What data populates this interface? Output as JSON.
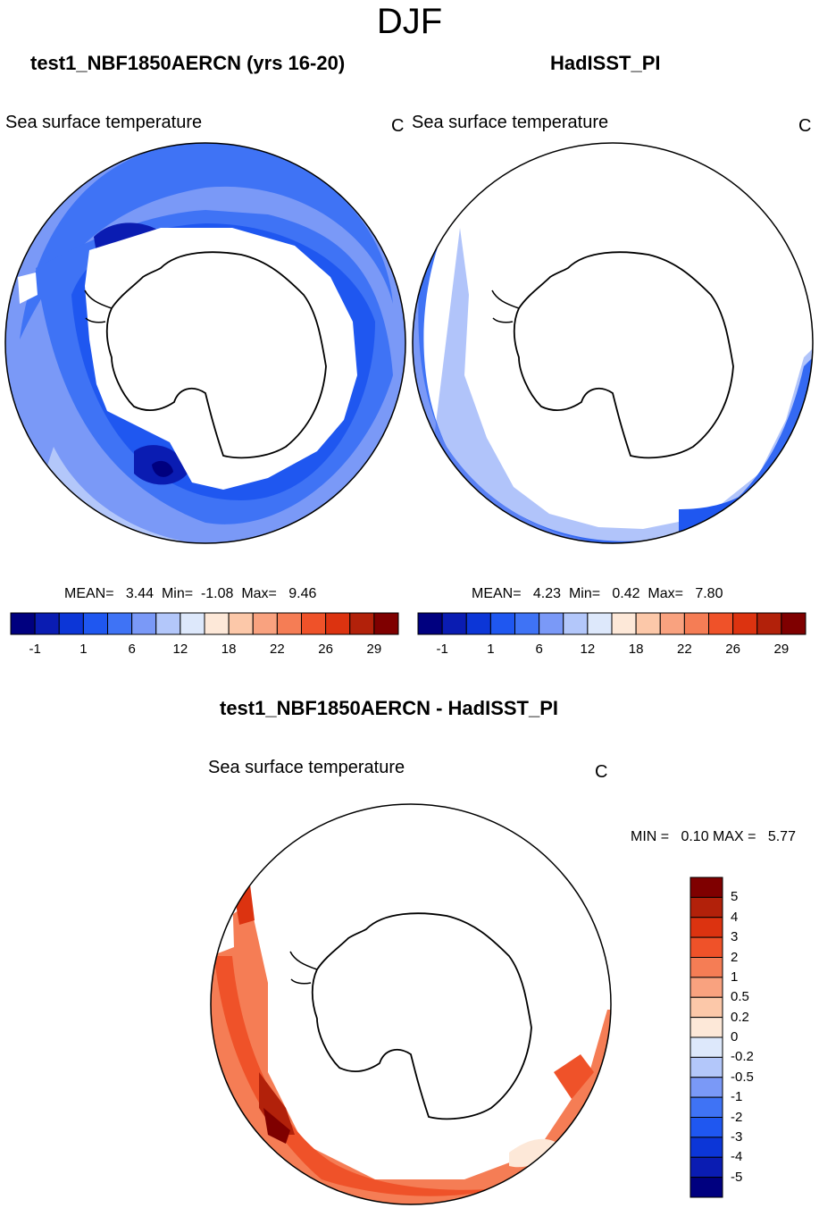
{
  "figure": {
    "season": "DJF",
    "field": "Sea surface temperature",
    "units": "C"
  },
  "panels": {
    "model": {
      "title": "test1_NBF1850AERCN (yrs 16-20)",
      "subtitle": "Sea surface temperature",
      "units": "C",
      "stats": "MEAN=   3.44  Min=  -1.08  Max=   9.46"
    },
    "obs": {
      "title": "HadISST_PI",
      "subtitle": "Sea surface temperature",
      "units": "C",
      "stats": "MEAN=   4.23  Min=   0.42  Max=   7.80"
    },
    "diff": {
      "title": "test1_NBF1850AERCN - HadISST_PI",
      "subtitle": "Sea surface temperature",
      "units": "C",
      "stats": "MIN =   0.10 MAX =   5.77"
    }
  },
  "chart_data": [
    {
      "type": "heatmap",
      "projection": "south-polar stereographic",
      "title": "test1_NBF1850AERCN (yrs 16-20)",
      "variable": "Sea surface temperature",
      "units": "C",
      "mean": 3.44,
      "min": -1.08,
      "max": 9.46,
      "colorbar": {
        "orientation": "horizontal",
        "tick_labels": [
          "-1",
          "1",
          "6",
          "12",
          "18",
          "22",
          "26",
          "29"
        ],
        "colors": [
          "#00007f",
          "#0a1cb2",
          "#0c36d7",
          "#1f57f0",
          "#3f73f5",
          "#7a99f7",
          "#b3c7fa",
          "#dde8fb",
          "#fde8d8",
          "#fcc8a9",
          "#f9a27f",
          "#f57d55",
          "#ef5229",
          "#dc3310",
          "#b2210a",
          "#7f0000"
        ]
      }
    },
    {
      "type": "heatmap",
      "projection": "south-polar stereographic",
      "title": "HadISST_PI",
      "variable": "Sea surface temperature",
      "units": "C",
      "mean": 4.23,
      "min": 0.42,
      "max": 7.8,
      "colorbar": {
        "orientation": "horizontal",
        "tick_labels": [
          "-1",
          "1",
          "6",
          "12",
          "18",
          "22",
          "26",
          "29"
        ],
        "colors": [
          "#00007f",
          "#0a1cb2",
          "#0c36d7",
          "#1f57f0",
          "#3f73f5",
          "#7a99f7",
          "#b3c7fa",
          "#dde8fb",
          "#fde8d8",
          "#fcc8a9",
          "#f9a27f",
          "#f57d55",
          "#ef5229",
          "#dc3310",
          "#b2210a",
          "#7f0000"
        ]
      }
    },
    {
      "type": "heatmap",
      "projection": "south-polar stereographic",
      "title": "test1_NBF1850AERCN - HadISST_PI",
      "variable": "Sea surface temperature",
      "units": "C",
      "min": 0.1,
      "max": 5.77,
      "colorbar": {
        "orientation": "vertical",
        "tick_labels": [
          "5",
          "4",
          "3",
          "2",
          "1",
          "0.5",
          "0.2",
          "0",
          "-0.2",
          "-0.5",
          "-1",
          "-2",
          "-3",
          "-4",
          "-5"
        ],
        "colors": [
          "#7f0000",
          "#b2210a",
          "#dc3310",
          "#ef5229",
          "#f57d55",
          "#f9a27f",
          "#fcc8a9",
          "#fde8d8",
          "#dde8fb",
          "#b3c7fa",
          "#7a99f7",
          "#3f73f5",
          "#1f57f0",
          "#0c36d7",
          "#0a1cb2",
          "#00007f"
        ]
      }
    }
  ]
}
